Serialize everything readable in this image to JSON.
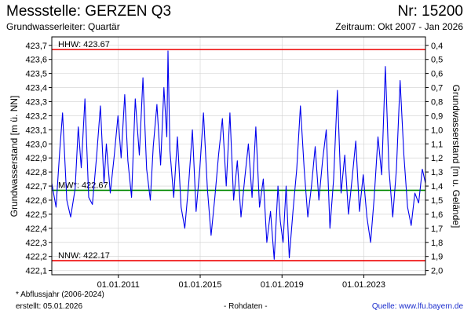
{
  "header": {
    "title": "Messstelle: GERZEN Q3",
    "number": "Nr: 15200",
    "aquifer": "Grundwasserleiter: Quartär",
    "period": "Zeitraum: Okt 2007 - Jan 2026"
  },
  "footer": {
    "footnote": "* Abflussjahr (2006-2024)",
    "created": "erstellt:  05.01.2026",
    "rawdata": "- Rohdaten -",
    "source": "Quelle:  www.lfu.bayern.de"
  },
  "colors": {
    "series": "#0000ee",
    "hhw": "#ee0000",
    "nnw": "#ee0000",
    "mhw": "#008800",
    "axis": "#000000",
    "source_link": "#1a2ccc"
  },
  "chart_data": {
    "type": "line",
    "ylabel": "Grundwasserstand [m ü. NN]",
    "ylabel_right": "Grundwasserstand [m u. Gelände]",
    "xlim": [
      "2007-10-01",
      "2026-01-05"
    ],
    "ylim": [
      422.07,
      423.76
    ],
    "y_ticks": [
      "422,1",
      "422,2",
      "422,3",
      "422,4",
      "422,5",
      "422,6",
      "422,7",
      "422,8",
      "422,9",
      "423,0",
      "423,1",
      "423,2",
      "423,3",
      "423,4",
      "423,5",
      "423,6",
      "423,7"
    ],
    "y_right_ticks": [
      "0,4",
      "0,5",
      "0,6",
      "0,7",
      "0,8",
      "0,9",
      "1,0",
      "1,1",
      "1,2",
      "1,3",
      "1,4",
      "1,5",
      "1,6",
      "1,7",
      "1,8",
      "1,9",
      "2,0"
    ],
    "x_ticks": [
      {
        "date": "2011-01-01",
        "label": "01.01.2011"
      },
      {
        "date": "2015-01-01",
        "label": "01.01.2015"
      },
      {
        "date": "2019-01-01",
        "label": "01.01.2019"
      },
      {
        "date": "2023-01-01",
        "label": "01.01.2023"
      }
    ],
    "reference_lines": [
      {
        "key": "hhw",
        "label": "HHW: 423.67",
        "value": 423.67
      },
      {
        "key": "mhw",
        "label": "MW*: 422.67",
        "value": 422.67
      },
      {
        "key": "nnw",
        "label": "NNW: 422.17",
        "value": 422.17
      }
    ],
    "grid": true,
    "series": [
      {
        "x": [
          "2007-10-01",
          "2007-12-15",
          "2008-02-20",
          "2008-04-10",
          "2008-06-25",
          "2008-09-01",
          "2008-11-20",
          "2009-01-15",
          "2009-03-10",
          "2009-05-15",
          "2009-07-20",
          "2009-09-25",
          "2009-12-10",
          "2010-02-15",
          "2010-04-20",
          "2010-06-01",
          "2010-08-10",
          "2010-10-20",
          "2010-12-25",
          "2011-02-20",
          "2011-04-25",
          "2011-06-20",
          "2011-08-25",
          "2011-10-30",
          "2012-01-10",
          "2012-03-15",
          "2012-05-20",
          "2012-07-25",
          "2012-09-15",
          "2012-11-20",
          "2013-01-25",
          "2013-03-25",
          "2013-05-15",
          "2013-06-05",
          "2013-07-10",
          "2013-09-15",
          "2013-11-20",
          "2014-01-25",
          "2014-04-01",
          "2014-06-10",
          "2014-08-15",
          "2014-10-20",
          "2014-12-25",
          "2015-03-01",
          "2015-05-10",
          "2015-07-15",
          "2015-09-20",
          "2015-11-25",
          "2016-02-01",
          "2016-04-10",
          "2016-06-15",
          "2016-08-20",
          "2016-10-25",
          "2016-12-30",
          "2017-03-05",
          "2017-05-10",
          "2017-07-15",
          "2017-09-20",
          "2017-11-25",
          "2018-02-01",
          "2018-04-05",
          "2018-06-10",
          "2018-08-15",
          "2018-10-20",
          "2018-12-01",
          "2019-01-20",
          "2019-03-15",
          "2019-05-10",
          "2019-07-15",
          "2019-09-20",
          "2019-11-25",
          "2020-02-01",
          "2020-04-05",
          "2020-06-10",
          "2020-08-15",
          "2020-10-20",
          "2020-12-25",
          "2021-03-01",
          "2021-05-05",
          "2021-07-10",
          "2021-09-15",
          "2021-11-20",
          "2022-01-25",
          "2022-04-01",
          "2022-06-05",
          "2022-08-10",
          "2022-10-15",
          "2022-12-20",
          "2023-02-25",
          "2023-05-01",
          "2023-07-05",
          "2023-09-10",
          "2023-11-15",
          "2024-01-20",
          "2024-03-25",
          "2024-05-30",
          "2024-08-05",
          "2024-10-10",
          "2024-12-15",
          "2025-02-20",
          "2025-04-25",
          "2025-06-30",
          "2025-09-05",
          "2025-11-10",
          "2026-01-05"
        ],
        "values": [
          422.72,
          422.55,
          422.95,
          423.22,
          422.6,
          422.48,
          422.68,
          423.12,
          422.83,
          423.32,
          422.62,
          422.57,
          422.92,
          423.27,
          422.72,
          423.0,
          422.65,
          422.92,
          423.2,
          422.9,
          423.35,
          422.88,
          422.62,
          423.32,
          422.92,
          423.47,
          422.82,
          422.6,
          422.98,
          423.28,
          422.85,
          423.4,
          423.05,
          423.66,
          422.95,
          422.62,
          423.05,
          422.55,
          422.4,
          422.72,
          423.1,
          422.52,
          422.82,
          423.22,
          422.68,
          422.35,
          422.62,
          422.92,
          423.18,
          422.7,
          423.22,
          422.6,
          422.88,
          422.48,
          422.75,
          423.0,
          422.62,
          423.12,
          422.55,
          422.75,
          422.3,
          422.52,
          422.18,
          422.7,
          422.45,
          422.3,
          422.7,
          422.19,
          422.52,
          422.82,
          423.27,
          422.82,
          422.48,
          422.7,
          422.98,
          422.6,
          422.88,
          423.1,
          422.4,
          422.75,
          423.38,
          422.65,
          422.92,
          422.5,
          422.75,
          423.02,
          422.52,
          422.78,
          422.48,
          422.3,
          422.62,
          423.05,
          422.78,
          423.55,
          422.82,
          422.48,
          422.82,
          423.45,
          422.92,
          422.55,
          422.42,
          422.65,
          422.58,
          422.82,
          422.72
        ]
      }
    ]
  }
}
